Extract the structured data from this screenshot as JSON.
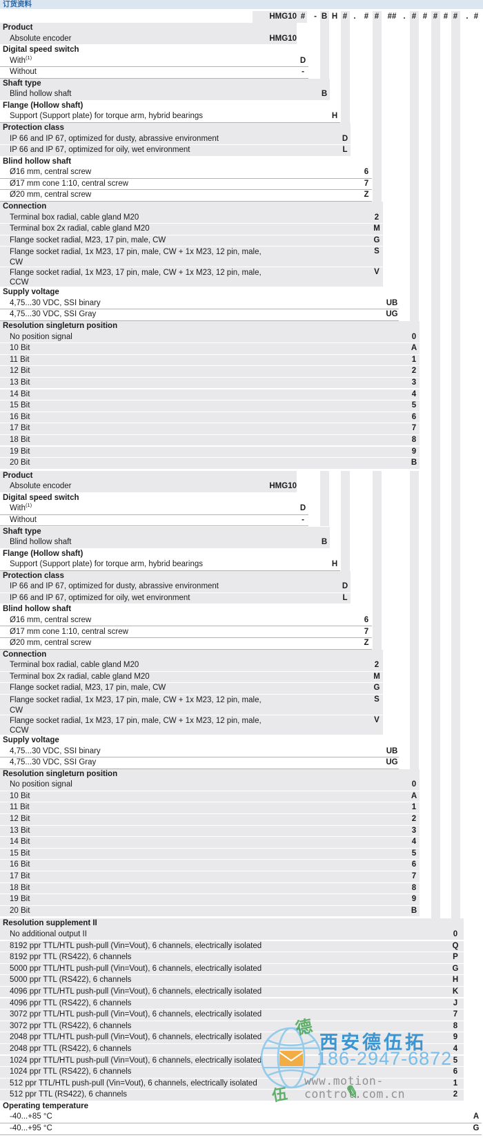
{
  "title_bar": {
    "label": "订货资料"
  },
  "code_header": {
    "prefix": "HMG10",
    "symbols": [
      "#",
      "-",
      "B",
      "H",
      "#",
      ".",
      "#",
      "#",
      "##",
      ".",
      "#",
      "#",
      "#",
      "#",
      "#",
      ".",
      "#"
    ]
  },
  "order_table": {
    "block_a_repeat": 2,
    "block_a_sections": [
      {
        "name": "Product",
        "col": "prefix",
        "shaded": true,
        "rows": [
          {
            "label": "Absolute encoder",
            "code": "HMG10"
          }
        ]
      },
      {
        "name": "Digital speed switch",
        "col": "c1",
        "shaded": false,
        "rows": [
          {
            "label": "With",
            "sup": "(1)",
            "code": "D"
          },
          {
            "label": "Without",
            "code": "-"
          }
        ]
      },
      {
        "name": "Shaft type",
        "col": "B",
        "shaded": true,
        "rows": [
          {
            "label": "Blind hollow shaft",
            "code": "B"
          }
        ]
      },
      {
        "name": "Flange (Hollow shaft)",
        "col": "H",
        "shaded": false,
        "rows": [
          {
            "label": "Support (Support plate) for torque arm, hybrid bearings",
            "code": "H"
          }
        ]
      },
      {
        "name": "Protection class",
        "col": "c2",
        "shaded": true,
        "rows": [
          {
            "label": "IP 66 and IP 67, optimized for dusty, abrassive environment",
            "code": "D"
          },
          {
            "label": "IP 66 and IP 67, optimized for oily, wet environment",
            "code": "L"
          }
        ]
      },
      {
        "name": "Blind hollow shaft",
        "col": "c3",
        "shaded": false,
        "rows": [
          {
            "label": "Ø16 mm, central screw",
            "code": "6"
          },
          {
            "label": "Ø17 mm cone 1:10, central screw",
            "code": "7"
          },
          {
            "label": "Ø20 mm, central screw",
            "code": "Z"
          }
        ]
      },
      {
        "name": "Connection",
        "col": "c4",
        "shaded": true,
        "rows": [
          {
            "label": "Terminal box radial, cable gland M20",
            "code": "2"
          },
          {
            "label": "Terminal box 2x radial, cable gland M20",
            "code": "M"
          },
          {
            "label": "Flange socket radial, M23, 17 pin, male, CW",
            "code": "G"
          },
          {
            "label": "Flange socket radial, 1x M23, 17 pin, male, CW + 1x M23, 12 pin, male,",
            "label2": "CW",
            "code": "S"
          },
          {
            "label": "Flange socket radial, 1x M23, 17 pin, male, CW + 1x M23, 12 pin, male,",
            "label2": "CCW",
            "code": "V"
          }
        ]
      },
      {
        "name": "Supply voltage",
        "col": "c5",
        "shaded": false,
        "rows": [
          {
            "label": "4,75...30 VDC, SSI binary",
            "code": "UB"
          },
          {
            "label": "4,75...30 VDC, SSI Gray",
            "code": "UG"
          }
        ]
      },
      {
        "name": "Resolution singleturn position",
        "col": "c6",
        "shaded": true,
        "rows": [
          {
            "label": "No position signal",
            "code": "0"
          },
          {
            "label": "10 Bit",
            "code": "A"
          },
          {
            "label": "11 Bit",
            "code": "1"
          },
          {
            "label": "12 Bit",
            "code": "2"
          },
          {
            "label": "13 Bit",
            "code": "3"
          },
          {
            "label": "14 Bit",
            "code": "4"
          },
          {
            "label": "15 Bit",
            "code": "5"
          },
          {
            "label": "16 Bit",
            "code": "6"
          },
          {
            "label": "17 Bit",
            "code": "7"
          },
          {
            "label": "18 Bit",
            "code": "8"
          },
          {
            "label": "19 Bit",
            "code": "9"
          },
          {
            "label": "20 Bit",
            "code": "B"
          }
        ]
      }
    ],
    "block_b_sections": [
      {
        "name": "Resolution supplement II",
        "col": "c10",
        "shaded": true,
        "rows": [
          {
            "label": "No additional output II",
            "code": "0"
          },
          {
            "label": "8192 ppr TTL/HTL push-pull (Vin=Vout), 6 channels, electrically isolated",
            "code": "Q"
          },
          {
            "label": "8192 ppr TTL (RS422), 6 channels",
            "code": "P"
          },
          {
            "label": "5000 ppr TTL/HTL push-pull (Vin=Vout), 6 channels, electrically isolated",
            "code": "G"
          },
          {
            "label": "5000 ppr TTL (RS422), 6 channels",
            "code": "H"
          },
          {
            "label": "4096 ppr TTL/HTL push-pull (Vin=Vout), 6 channels, electrically isolated",
            "code": "K"
          },
          {
            "label": "4096 ppr TTL (RS422), 6 channels",
            "code": "J"
          },
          {
            "label": "3072 ppr TTL/HTL push-pull (Vin=Vout), 6 channels, electrically isolated",
            "code": "7"
          },
          {
            "label": "3072 ppr TTL (RS422), 6 channels",
            "code": "8"
          },
          {
            "label": "2048 ppr TTL/HTL push-pull (Vin=Vout), 6 channels, electrically isolated",
            "code": "9"
          },
          {
            "label": "2048 ppr TTL (RS422), 6 channels",
            "code": "4"
          },
          {
            "label": "1024 ppr TTL/HTL push-pull (Vin=Vout), 6 channels, electrically isolated",
            "code": "5"
          },
          {
            "label": "1024 ppr TTL (RS422), 6 channels",
            "code": "6"
          },
          {
            "label": "512 ppr TTL/HTL push-pull (Vin=Vout), 6 channels, electrically isolated",
            "code": "1"
          },
          {
            "label": "512 ppr TTL (RS422), 6 channels",
            "code": "2"
          }
        ]
      },
      {
        "name": "Operating temperature",
        "col": "c11",
        "shaded": false,
        "rows": [
          {
            "label": "-40...+85 °C",
            "code": "A"
          },
          {
            "label": "-40...+95 °C",
            "code": "G"
          }
        ]
      }
    ]
  },
  "watermark": {
    "company": "西安德伍拓",
    "phone": "186-2947-6872",
    "url": "www.motion-control.com.cn",
    "stamp_char_top": "德",
    "stamp_char_bottom": "伍",
    "pencil": "✎",
    "logo": "globe-envelope-icon"
  },
  "colors": {
    "section_gray": "#e9e9eb",
    "title_bar_bg": "#dbe6f1",
    "title_text": "#2166ae",
    "hairline": "#b2b2b2",
    "text": "#1c1c1c",
    "wm_blue": "#2e8ecf",
    "wm_light_blue": "#73bbe7",
    "wm_gray": "#8d8d8d",
    "stamp_green": "#3da04b"
  }
}
